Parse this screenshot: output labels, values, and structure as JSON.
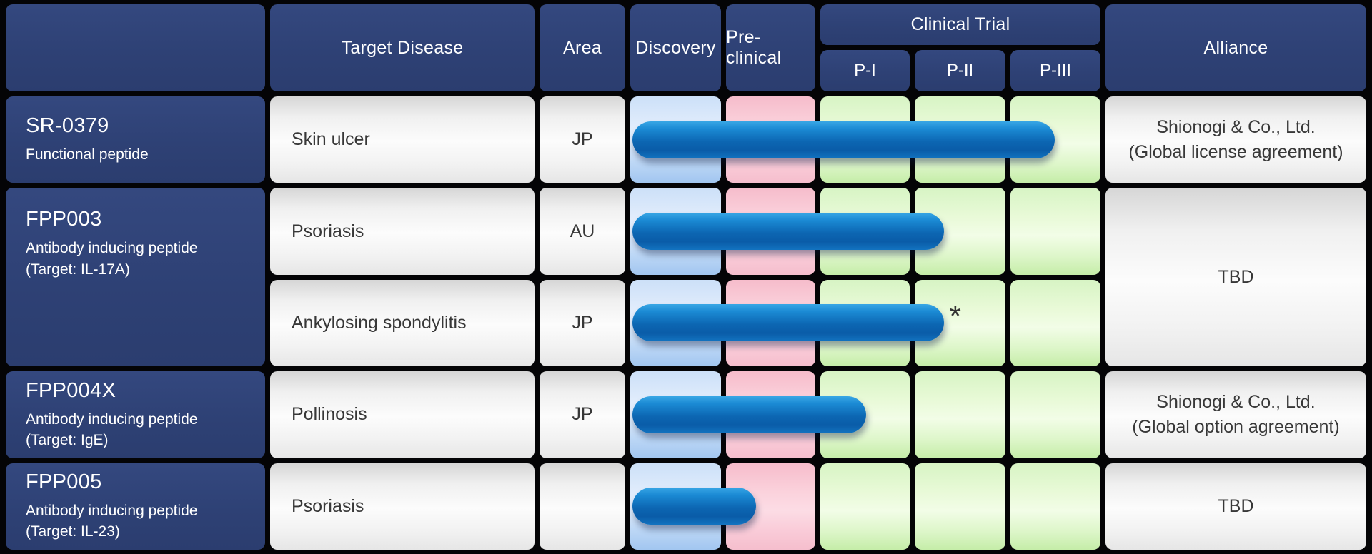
{
  "header": {
    "target_disease": "Target Disease",
    "area": "Area",
    "discovery": "Discovery",
    "preclinical": "Pre-clinical",
    "clinical_trial": "Clinical Trial",
    "phase1": "P-I",
    "phase2": "P-II",
    "phase3": "P-III",
    "alliance": "Alliance"
  },
  "rows": [
    {
      "product": "SR-0379",
      "description": "Functional peptide",
      "disease": "Skin ulcer",
      "area": "JP",
      "alliance": "Shionogi & Co., Ltd.\n(Global license agreement)"
    },
    {
      "product": "FPP003",
      "description": "Antibody inducing peptide\n(Target: IL-17A)",
      "disease": "Psoriasis",
      "area": "AU",
      "alliance": "TBD"
    },
    {
      "disease": "Ankylosing spondylitis",
      "area": "JP",
      "note": "*"
    },
    {
      "product": "FPP004X",
      "description": "Antibody inducing peptide\n(Target: IgE)",
      "disease": "Pollinosis",
      "area": "JP",
      "alliance": "Shionogi & Co., Ltd.\n(Global option agreement)"
    },
    {
      "product": "FPP005",
      "description": "Antibody inducing peptide\n(Target: IL-23)",
      "disease": "Psoriasis",
      "area": "",
      "alliance": "TBD"
    }
  ],
  "colors": {
    "navy": "#2E4175",
    "bar_blue_light": "#38A6E5",
    "bar_blue_dark": "#0A5CA8",
    "discovery_blue": "#BFD9F6",
    "preclinical_pink": "#F8C8D5",
    "clinical_green": "#DDF5C9",
    "cell_grey": "#F0F0F0",
    "background": "#000000"
  },
  "chart_data": {
    "type": "table",
    "stage_columns": [
      "Discovery",
      "Pre-clinical",
      "P-I",
      "P-II",
      "P-III"
    ],
    "stage_keys": [
      "discovery",
      "preclinical",
      "p1",
      "p2",
      "p3"
    ],
    "bars": [
      {
        "row": 0,
        "label": "SR-0379 / Skin ulcer",
        "start_stage": "discovery",
        "start_frac": 0.02,
        "end_stage": "p3",
        "end_frac": 0.49,
        "note": ""
      },
      {
        "row": 1,
        "label": "FPP003 / Psoriasis",
        "start_stage": "discovery",
        "start_frac": 0.02,
        "end_stage": "p2",
        "end_frac": 0.32,
        "note": ""
      },
      {
        "row": 2,
        "label": "FPP003 / Ankylosing spondylitis",
        "start_stage": "discovery",
        "start_frac": 0.02,
        "end_stage": "p2",
        "end_frac": 0.32,
        "note": "*"
      },
      {
        "row": 3,
        "label": "FPP004X / Pollinosis",
        "start_stage": "discovery",
        "start_frac": 0.02,
        "end_stage": "p1",
        "end_frac": 0.51,
        "note": ""
      },
      {
        "row": 4,
        "label": "FPP005 / Psoriasis",
        "start_stage": "discovery",
        "start_frac": 0.02,
        "end_stage": "preclinical",
        "end_frac": 0.34,
        "note": ""
      }
    ]
  }
}
